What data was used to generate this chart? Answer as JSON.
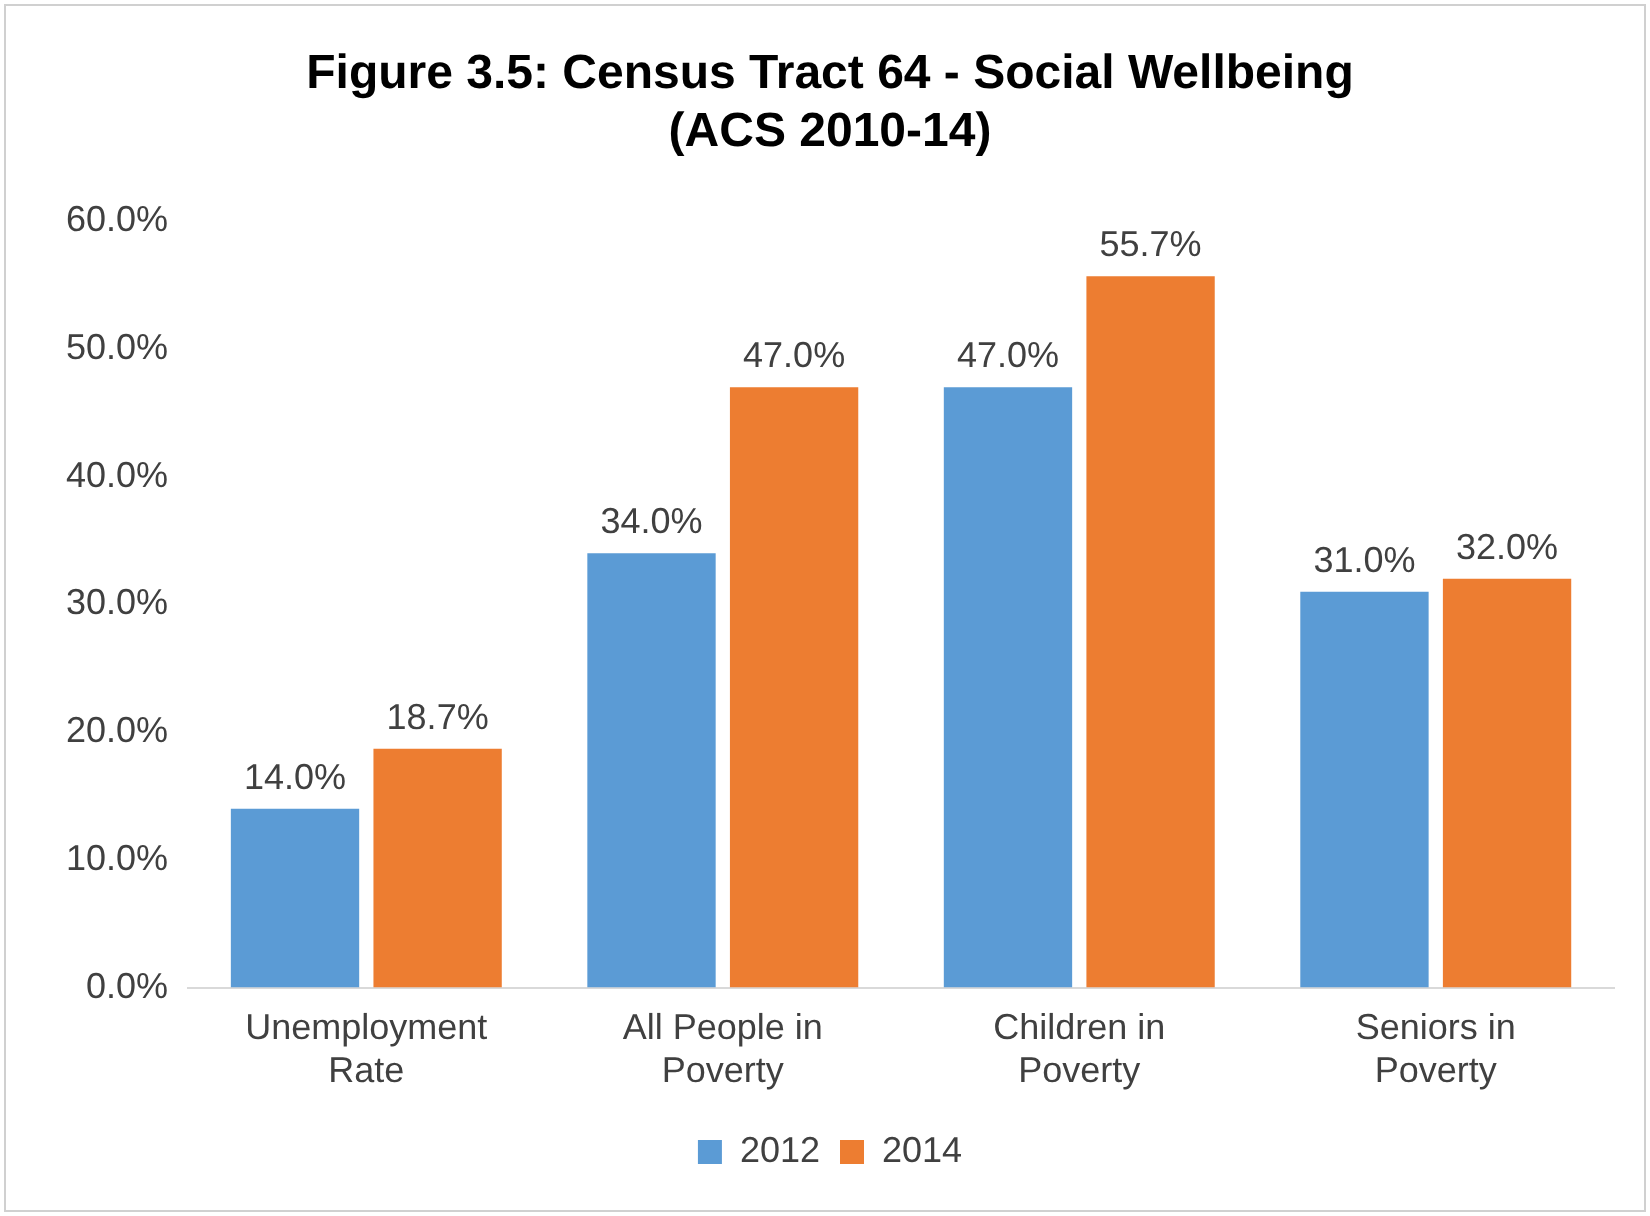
{
  "chart_data": {
    "type": "bar",
    "title": "Figure 3.5: Census Tract 64 - Social Wellbeing (ACS 2010-14)",
    "categories": [
      "Unemployment Rate",
      "All People in Poverty",
      "Children in Poverty",
      "Seniors in Poverty"
    ],
    "series": [
      {
        "name": "2012",
        "color": "#5b9bd5",
        "values": [
          14.0,
          34.0,
          47.0,
          31.0
        ],
        "value_labels": [
          "14.0%",
          "34.0%",
          "47.0%",
          "31.0%"
        ]
      },
      {
        "name": "2014",
        "color": "#ed7d31",
        "values": [
          18.7,
          47.0,
          55.7,
          32.0
        ],
        "value_labels": [
          "18.7%",
          "47.0%",
          "55.7%",
          "32.0%"
        ]
      }
    ],
    "ylim": [
      0,
      60
    ],
    "yticks": [
      {
        "value": 0,
        "label": "0.0%"
      },
      {
        "value": 10,
        "label": "10.0%"
      },
      {
        "value": 20,
        "label": "20.0%"
      },
      {
        "value": 30,
        "label": "30.0%"
      },
      {
        "value": 40,
        "label": "40.0%"
      },
      {
        "value": 50,
        "label": "50.0%"
      },
      {
        "value": 60,
        "label": "60.0%"
      }
    ],
    "grid": false,
    "legend": "bottom"
  }
}
